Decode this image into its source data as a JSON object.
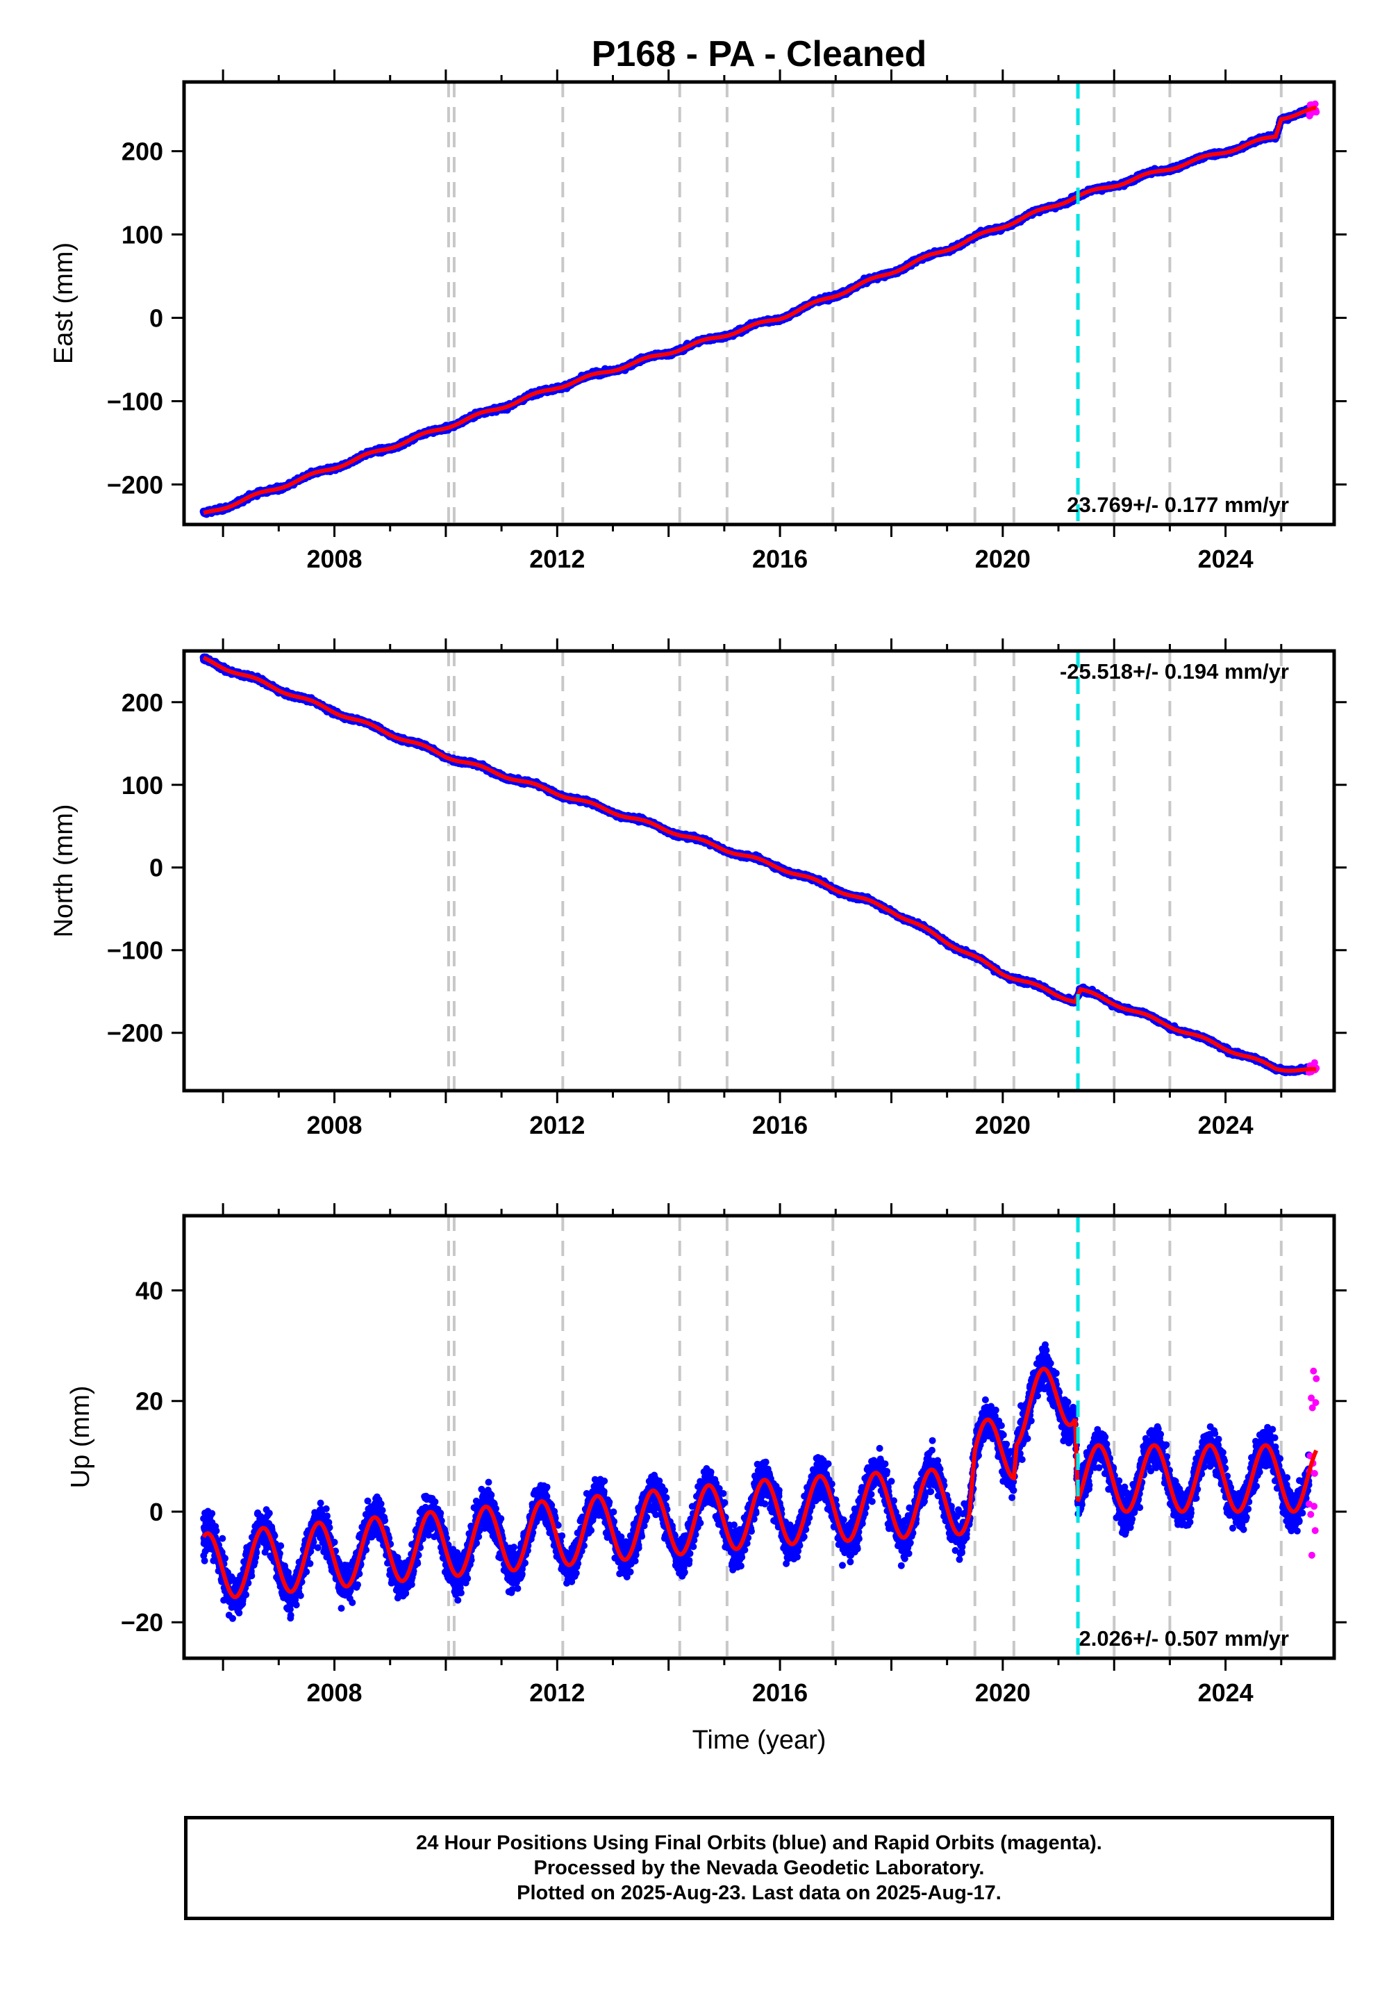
{
  "title": "P168  - PA - Cleaned",
  "xlabel": "Time (year)",
  "colors": {
    "final_orbits": "#0000ff",
    "rapid_orbits": "#ff00ff",
    "model": "#ff0000",
    "event_line": "#00e5e5",
    "equipment_line": "#c8c8c8"
  },
  "caption": {
    "line1": "24 Hour Positions Using Final Orbits (blue) and Rapid Orbits (magenta).",
    "line2": "Processed by the Nevada Geodetic Laboratory.",
    "line3": "Plotted on 2025-Aug-23. Last data on 2025-Aug-17."
  },
  "chart_data": [
    {
      "type": "scatter",
      "ylabel": "East (mm)",
      "xlim": [
        2005.3,
        2025.95
      ],
      "ylim": [
        -248,
        283
      ],
      "xticks": [
        2008,
        2012,
        2016,
        2020,
        2024
      ],
      "yticks": [
        -200,
        -100,
        0,
        100,
        200
      ],
      "rate_label": "23.769+/- 0.177 mm/yr",
      "rate_position": "bottom-right",
      "data_start": 2005.65,
      "data_end": 2025.63,
      "rapid_start": 2025.5,
      "rate": 23.769,
      "value_at_2016": 0,
      "trend_points": [
        [
          2005.65,
          -236
        ],
        [
          2010.0,
          -131
        ],
        [
          2012.0,
          -83
        ],
        [
          2016.0,
          0
        ],
        [
          2020.0,
          110
        ],
        [
          2021.3,
          145
        ],
        [
          2024.9,
          218
        ],
        [
          2025.0,
          240
        ],
        [
          2025.6,
          250
        ]
      ],
      "seasonal_amplitude": 2,
      "noise": 2.5,
      "equipment_lines": [
        2010.05,
        2010.15,
        2012.1,
        2014.2,
        2015.05,
        2016.95,
        2019.5,
        2020.2,
        2022.0,
        2023.0,
        2025.0
      ],
      "event_lines": [
        2021.35
      ]
    },
    {
      "type": "scatter",
      "ylabel": "North (mm)",
      "xlim": [
        2005.3,
        2025.95
      ],
      "ylim": [
        -270,
        262
      ],
      "xticks": [
        2008,
        2012,
        2016,
        2020,
        2024
      ],
      "yticks": [
        -200,
        -100,
        0,
        100,
        200
      ],
      "rate_label": "-25.518+/- 0.194 mm/yr",
      "rate_position": "top-right",
      "data_start": 2005.65,
      "data_end": 2025.63,
      "rapid_start": 2025.5,
      "rate": -25.518,
      "value_at_2016": 0,
      "trend_points": [
        [
          2005.65,
          252
        ],
        [
          2010.0,
          135
        ],
        [
          2016.0,
          0
        ],
        [
          2018.0,
          -52
        ],
        [
          2020.0,
          -128
        ],
        [
          2021.3,
          -162
        ],
        [
          2021.4,
          -148
        ],
        [
          2024.9,
          -243
        ],
        [
          2025.6,
          -246
        ]
      ],
      "seasonal_amplitude": 2,
      "noise": 2.5,
      "equipment_lines": [
        2010.05,
        2010.15,
        2012.1,
        2014.2,
        2015.05,
        2016.95,
        2019.5,
        2020.2,
        2022.0,
        2023.0,
        2025.0
      ],
      "event_lines": [
        2021.35
      ]
    },
    {
      "type": "scatter",
      "ylabel": "Up (mm)",
      "xlim": [
        2005.3,
        2025.95
      ],
      "ylim": [
        -26.5,
        53.5
      ],
      "xticks": [
        2008,
        2012,
        2016,
        2020,
        2024
      ],
      "yticks": [
        -20,
        0,
        20,
        40
      ],
      "rate_label": "2.026+/- 0.507 mm/yr",
      "rate_position": "bottom-right",
      "data_start": 2005.65,
      "data_end": 2025.63,
      "rapid_start": 2025.5,
      "rate": 2.026,
      "value_at_2016": 0,
      "trend_points": [
        [
          2005.65,
          -10
        ],
        [
          2016.0,
          0
        ],
        [
          2019.4,
          2
        ],
        [
          2019.5,
          10
        ],
        [
          2020.2,
          12
        ],
        [
          2020.25,
          18
        ],
        [
          2021.3,
          22
        ],
        [
          2021.35,
          6
        ],
        [
          2025.6,
          6
        ]
      ],
      "seasonal_amplitude": 6,
      "seasonal_phase_peak": 0.72,
      "noise": 3.5,
      "equipment_lines": [
        2010.05,
        2010.15,
        2012.1,
        2014.2,
        2015.05,
        2016.95,
        2019.5,
        2020.2,
        2022.0,
        2023.0,
        2025.0
      ],
      "event_lines": [
        2021.35
      ]
    }
  ]
}
